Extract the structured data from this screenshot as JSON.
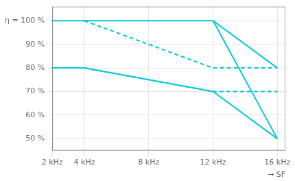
{
  "chart_data": {
    "type": "line",
    "xlabel": "→ SF",
    "color": "#00c8d8",
    "grid": true,
    "xlim": [
      2000,
      16500
    ],
    "ylim": [
      45,
      106
    ],
    "xticks": [
      {
        "value": 2000,
        "label": "2 kHz"
      },
      {
        "value": 4000,
        "label": "4 kHz"
      },
      {
        "value": 8000,
        "label": "8 kHz"
      },
      {
        "value": 12000,
        "label": "12 kHz"
      },
      {
        "value": 16000,
        "label": "16 kHz"
      }
    ],
    "yticks": [
      {
        "value": 50,
        "label": "50 %"
      },
      {
        "value": 60,
        "label": "60 %"
      },
      {
        "value": 70,
        "label": "70 %"
      },
      {
        "value": 80,
        "label": "80 %"
      },
      {
        "value": 90,
        "label": "90 %"
      },
      {
        "value": 100,
        "label": "η = 100 %"
      }
    ],
    "series": [
      {
        "x": [
          2000,
          12000,
          16000
        ],
        "values": [
          100,
          100,
          80
        ],
        "line_style": "solid"
      },
      {
        "x": [
          4000,
          12000,
          16000
        ],
        "values": [
          100,
          80,
          80
        ],
        "line_style": "dashed"
      },
      {
        "x": [
          12000,
          16000
        ],
        "values": [
          100,
          50
        ],
        "line_style": "solid"
      },
      {
        "x": [
          2000,
          4000,
          12000
        ],
        "values": [
          80,
          80,
          70
        ],
        "line_style": "solid"
      },
      {
        "x": [
          4000,
          12000,
          16000
        ],
        "values": [
          80,
          70,
          70
        ],
        "line_style": "dashed"
      },
      {
        "x": [
          12000,
          16000
        ],
        "values": [
          70,
          50
        ],
        "line_style": "solid"
      }
    ]
  }
}
